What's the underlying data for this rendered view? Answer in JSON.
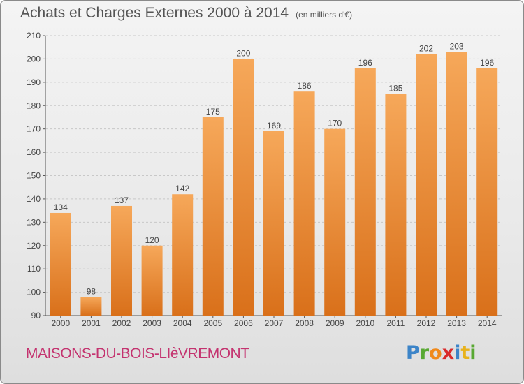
{
  "header": {
    "title": "Achats et Charges Externes 2000 à 2014",
    "unit": "(en milliers d'€)"
  },
  "footer": {
    "town": "MAISONS-DU-BOIS-LIèVREMONT",
    "logo_letters": [
      {
        "ch": "P",
        "color": "#3c84c8"
      },
      {
        "ch": "r",
        "color": "#58a832"
      },
      {
        "ch": "o",
        "color": "#f08a1c"
      },
      {
        "ch": "x",
        "color": "#d92b2b"
      },
      {
        "ch": "i",
        "color": "#3c84c8"
      },
      {
        "ch": "t",
        "color": "#e8b21c"
      },
      {
        "ch": "i",
        "color": "#58a832"
      }
    ]
  },
  "colors": {
    "bar_light": "#f6a85a",
    "bar_dark": "#d9701a",
    "grid": "#c8c8c8",
    "axis": "#555555",
    "text": "#444444"
  },
  "chart_data": {
    "type": "bar",
    "title": "Achats et Charges Externes 2000 à 2014",
    "subtitle": "(en milliers d'€)",
    "categories": [
      "2000",
      "2001",
      "2002",
      "2003",
      "2004",
      "2005",
      "2006",
      "2007",
      "2008",
      "2009",
      "2010",
      "2011",
      "2012",
      "2013",
      "2014"
    ],
    "values": [
      134,
      98,
      137,
      120,
      142,
      175,
      200,
      169,
      186,
      170,
      196,
      185,
      202,
      203,
      196
    ],
    "ylim": [
      90,
      210
    ],
    "yticks": [
      90,
      100,
      110,
      120,
      130,
      140,
      150,
      160,
      170,
      180,
      190,
      200,
      210
    ],
    "grid": true,
    "data_labels": true
  }
}
